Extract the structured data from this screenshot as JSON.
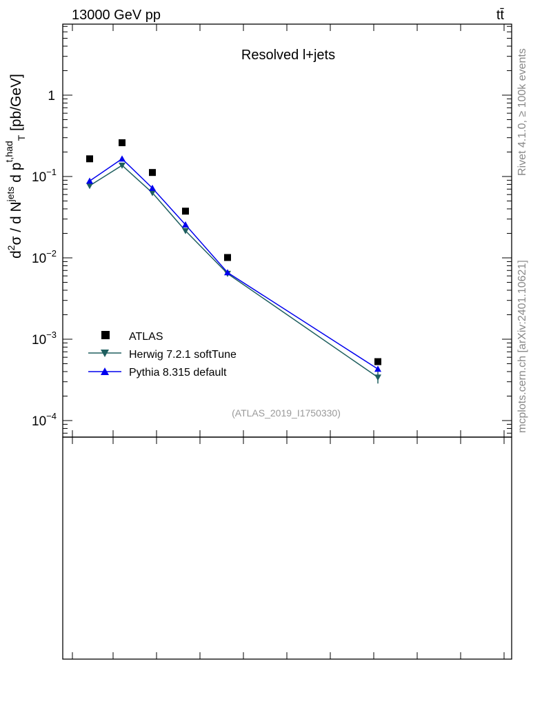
{
  "header": {
    "energy_label": "13000 GeV pp",
    "process_label": "tt̄"
  },
  "chart_data": {
    "type": "line",
    "title": "Resolved l+jets",
    "yaxis_label_segments": [
      "d",
      "2",
      "σ / d N",
      "jets",
      " d p",
      "t,had",
      "T",
      " [pb/GeV]"
    ],
    "yscale": "log",
    "ylim": [
      6e-05,
      8
    ],
    "y_ticks": [
      {
        "value": 0.0001,
        "base": "10",
        "exp": "−4"
      },
      {
        "value": 0.001,
        "base": "10",
        "exp": "−3"
      },
      {
        "value": 0.01,
        "base": "10",
        "exp": "−2"
      },
      {
        "value": 0.1,
        "base": "10",
        "exp": "−1"
      },
      {
        "value": 1,
        "base": "1",
        "exp": ""
      }
    ],
    "x_bins": [
      1,
      2,
      3,
      4,
      5,
      6
    ],
    "x_positions": [
      130,
      177,
      221,
      269,
      330,
      548
    ],
    "series": [
      {
        "name": "ATLAS",
        "marker": "square",
        "color": "#000000",
        "values": [
          0.165,
          0.26,
          0.112,
          0.0375,
          0.0101,
          0.00053
        ]
      },
      {
        "name": "Herwig 7.2.1 softTune",
        "marker": "triangle-down",
        "color": "#1f5f5f",
        "values": [
          0.077,
          0.137,
          0.063,
          0.0215,
          0.0064,
          0.00034
        ]
      },
      {
        "name": "Pythia 8.315 default",
        "marker": "triangle-up",
        "color": "#0000ee",
        "values": [
          0.088,
          0.165,
          0.072,
          0.0255,
          0.0066,
          0.00043
        ]
      }
    ],
    "legend_position": "lower-left",
    "analysis_id": "(ATLAS_2019_I1750330)"
  },
  "side_labels": {
    "rivet": "Rivet 4.1.0, ≥ 100k events",
    "mcplots": "mcplots.cern.ch [arXiv:2401.10621]"
  }
}
